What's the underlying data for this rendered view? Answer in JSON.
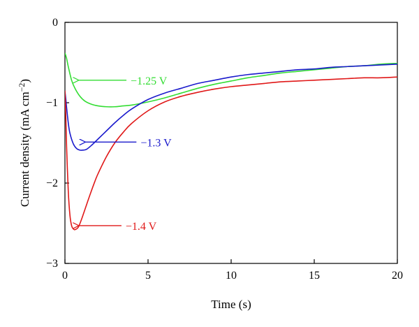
{
  "chart_data": {
    "type": "line",
    "xlabel": "Time (s)",
    "ylabel": "Current density (mA cm−2)",
    "ylabel_parts": {
      "main": "Current density (mA cm",
      "sup": "−2",
      "close": ")"
    },
    "xlim": [
      0,
      20
    ],
    "ylim": [
      -3,
      0
    ],
    "xticks": [
      "0",
      "5",
      "10",
      "15",
      "20"
    ],
    "yticks": [
      "0",
      "−1",
      "−2",
      "−3"
    ],
    "grid": false,
    "series": [
      {
        "label": "−1.25 V",
        "color": "#33dd33",
        "x": [
          0.0,
          0.1,
          0.2,
          0.4,
          0.6,
          0.9,
          1.2,
          1.6,
          2.0,
          2.5,
          3.0,
          3.5,
          4.0,
          5.0,
          6.0,
          7.0,
          8.0,
          9.0,
          10.0,
          11.0,
          12.0,
          13.0,
          14.0,
          15.0,
          16.0,
          17.0,
          18.0,
          19.0,
          20.0
        ],
        "y": [
          -0.38,
          -0.45,
          -0.55,
          -0.72,
          -0.82,
          -0.92,
          -0.98,
          -1.02,
          -1.04,
          -1.05,
          -1.05,
          -1.04,
          -1.03,
          -0.99,
          -0.94,
          -0.88,
          -0.82,
          -0.77,
          -0.73,
          -0.69,
          -0.66,
          -0.63,
          -0.61,
          -0.59,
          -0.57,
          -0.55,
          -0.54,
          -0.52,
          -0.51
        ]
      },
      {
        "label": "−1.3 V",
        "color": "#1a1acc",
        "x": [
          0.0,
          0.05,
          0.1,
          0.2,
          0.3,
          0.5,
          0.7,
          0.9,
          1.1,
          1.3,
          1.6,
          2.0,
          2.5,
          3.0,
          3.5,
          4.0,
          5.0,
          6.0,
          7.0,
          8.0,
          9.0,
          10.0,
          11.0,
          12.0,
          13.0,
          14.0,
          15.0,
          16.0,
          17.0,
          18.0,
          19.0,
          20.0
        ],
        "y": [
          -0.86,
          -0.95,
          -1.06,
          -1.25,
          -1.38,
          -1.51,
          -1.57,
          -1.59,
          -1.59,
          -1.58,
          -1.53,
          -1.45,
          -1.35,
          -1.25,
          -1.16,
          -1.08,
          -0.96,
          -0.88,
          -0.82,
          -0.76,
          -0.72,
          -0.68,
          -0.65,
          -0.63,
          -0.61,
          -0.59,
          -0.58,
          -0.56,
          -0.55,
          -0.54,
          -0.53,
          -0.52
        ]
      },
      {
        "label": "−1.4 V",
        "color": "#e01818",
        "x": [
          0.0,
          0.05,
          0.1,
          0.2,
          0.3,
          0.4,
          0.5,
          0.6,
          0.8,
          1.0,
          1.2,
          1.5,
          1.8,
          2.0,
          2.5,
          3.0,
          3.5,
          4.0,
          5.0,
          6.0,
          7.0,
          8.0,
          9.0,
          10.0,
          11.0,
          12.0,
          13.0,
          14.0,
          15.0,
          16.0,
          17.0,
          18.0,
          19.0,
          20.0
        ],
        "y": [
          -0.85,
          -1.15,
          -1.55,
          -2.1,
          -2.4,
          -2.53,
          -2.57,
          -2.58,
          -2.55,
          -2.45,
          -2.33,
          -2.15,
          -1.98,
          -1.88,
          -1.67,
          -1.5,
          -1.37,
          -1.26,
          -1.1,
          -0.99,
          -0.92,
          -0.87,
          -0.83,
          -0.8,
          -0.78,
          -0.76,
          -0.74,
          -0.73,
          -0.72,
          -0.71,
          -0.7,
          -0.69,
          -0.69,
          -0.68
        ]
      }
    ],
    "annotations": [
      {
        "text": "−1.25 V",
        "series": 0,
        "arrow_from": [
          3.7,
          -0.72
        ],
        "arrow_to": [
          0.8,
          -0.72
        ]
      },
      {
        "text": "−1.3 V",
        "series": 1,
        "arrow_from": [
          4.3,
          -1.49
        ],
        "arrow_to": [
          1.2,
          -1.49
        ]
      },
      {
        "text": "−1.4 V",
        "series": 2,
        "arrow_from": [
          3.4,
          -2.53
        ],
        "arrow_to": [
          0.8,
          -2.53
        ]
      }
    ]
  }
}
